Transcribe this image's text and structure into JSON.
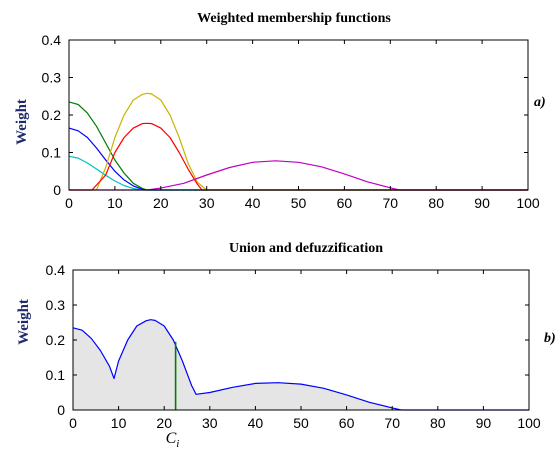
{
  "chart_data": [
    {
      "type": "line",
      "title": "Weighted membership functions",
      "ylabel": "Weight",
      "xlabel": "",
      "panel_label": "a)",
      "xlim": [
        0,
        100
      ],
      "ylim": [
        0,
        0.4
      ],
      "xticks": [
        "0",
        "10",
        "20",
        "30",
        "40",
        "50",
        "60",
        "70",
        "80",
        "90",
        "100"
      ],
      "yticks": [
        "0",
        "0.1",
        "0.2",
        "0.3",
        "0.4"
      ],
      "series": [
        {
          "color": "#008000",
          "x": [
            0,
            2,
            4,
            6,
            8,
            10,
            12,
            14,
            16,
            17,
            100
          ],
          "y": [
            0.235,
            0.228,
            0.205,
            0.17,
            0.125,
            0.08,
            0.045,
            0.018,
            0.004,
            0.0,
            0.0
          ]
        },
        {
          "color": "#0000ff",
          "x": [
            0,
            2,
            4,
            6,
            8,
            10,
            12,
            14,
            16,
            17,
            100
          ],
          "y": [
            0.165,
            0.158,
            0.14,
            0.112,
            0.08,
            0.05,
            0.027,
            0.011,
            0.002,
            0.0,
            0.0
          ]
        },
        {
          "color": "#00bfbf",
          "x": [
            0,
            2,
            4,
            6,
            8,
            10,
            12,
            14,
            16,
            100
          ],
          "y": [
            0.09,
            0.085,
            0.072,
            0.056,
            0.039,
            0.024,
            0.012,
            0.004,
            0.0,
            0.0
          ]
        },
        {
          "color": "#c8b400",
          "x": [
            0,
            6,
            8,
            10,
            12,
            14,
            16,
            17,
            18,
            20,
            22,
            24,
            26,
            28,
            30,
            100
          ],
          "y": [
            0.0,
            0.0,
            0.06,
            0.14,
            0.2,
            0.24,
            0.255,
            0.258,
            0.256,
            0.24,
            0.2,
            0.14,
            0.07,
            0.02,
            0.0,
            0.0
          ]
        },
        {
          "color": "#ff0000",
          "x": [
            0,
            5,
            8,
            10,
            12,
            14,
            16,
            17,
            18,
            20,
            22,
            24,
            26,
            28,
            29,
            100
          ],
          "y": [
            0.0,
            0.0,
            0.04,
            0.1,
            0.14,
            0.165,
            0.177,
            0.178,
            0.177,
            0.165,
            0.14,
            0.1,
            0.055,
            0.015,
            0.0,
            0.0
          ]
        },
        {
          "color": "#c000c0",
          "x": [
            0,
            17,
            20,
            25,
            30,
            35,
            40,
            45,
            50,
            55,
            60,
            65,
            70,
            72,
            100
          ],
          "y": [
            0.0,
            0.0,
            0.005,
            0.018,
            0.04,
            0.06,
            0.074,
            0.078,
            0.074,
            0.062,
            0.043,
            0.022,
            0.006,
            0.0,
            0.0
          ]
        }
      ]
    },
    {
      "type": "area",
      "title": "Union and defuzzification",
      "ylabel": "Weight",
      "xlabel": "",
      "panel_label": "b)",
      "xlim": [
        0,
        100
      ],
      "ylim": [
        0,
        0.4
      ],
      "xticks": [
        "0",
        "10",
        "20",
        "30",
        "40",
        "50",
        "60",
        "70",
        "80",
        "90",
        "100"
      ],
      "yticks": [
        "0",
        "0.1",
        "0.2",
        "0.3",
        "0.4"
      ],
      "series": [
        {
          "color": "#0000ff",
          "fill": "#e5e5e5",
          "x": [
            0,
            2,
            4,
            6,
            8,
            9,
            10,
            12,
            14,
            16,
            17,
            18,
            20,
            22,
            24,
            26,
            27,
            30,
            35,
            40,
            45,
            50,
            55,
            60,
            65,
            70,
            72,
            100
          ],
          "y": [
            0.235,
            0.228,
            0.205,
            0.17,
            0.125,
            0.09,
            0.14,
            0.2,
            0.24,
            0.255,
            0.258,
            0.256,
            0.24,
            0.2,
            0.14,
            0.07,
            0.045,
            0.05,
            0.065,
            0.076,
            0.078,
            0.074,
            0.062,
            0.043,
            0.022,
            0.006,
            0.0,
            0.0
          ]
        }
      ],
      "marker": {
        "label": "C",
        "subscript": "i",
        "x": 22.5,
        "y": 0.195,
        "color": "#008000"
      }
    }
  ]
}
